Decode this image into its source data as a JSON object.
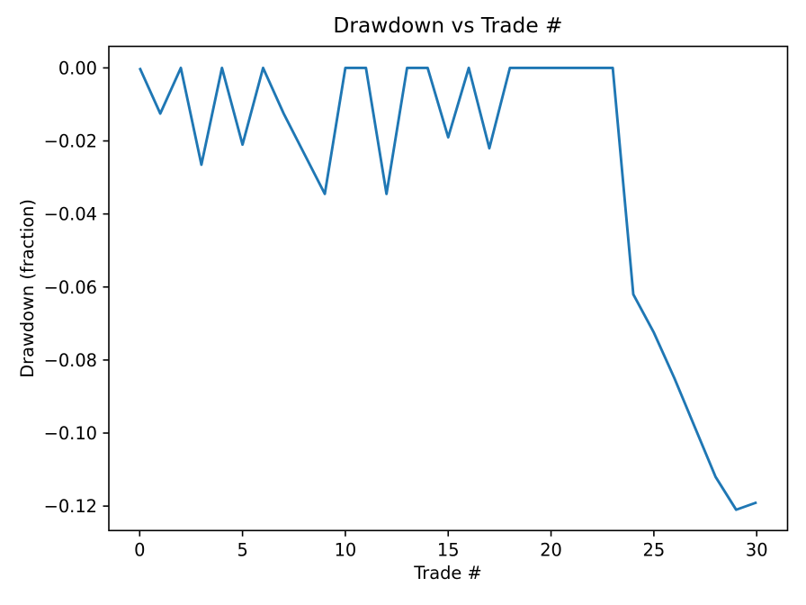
{
  "chart_data": {
    "type": "line",
    "title": "Drawdown vs Trade #",
    "xlabel": "Trade #",
    "ylabel": "Drawdown (fraction)",
    "x": [
      0,
      1,
      2,
      3,
      4,
      5,
      6,
      7,
      8,
      9,
      10,
      11,
      12,
      13,
      14,
      15,
      16,
      17,
      18,
      19,
      20,
      21,
      22,
      23,
      24,
      25,
      26,
      27,
      28,
      29,
      30
    ],
    "series": [
      {
        "name": "drawdown",
        "color": "#1f77b4",
        "values": [
          0,
          -0.0125,
          0,
          -0.0265,
          0,
          -0.021,
          0,
          -0.0125,
          -0.0235,
          -0.0345,
          0,
          0,
          -0.0345,
          0,
          0,
          -0.019,
          0,
          -0.022,
          0,
          0,
          0,
          0,
          0,
          0,
          -0.062,
          -0.0725,
          -0.085,
          -0.0985,
          -0.112,
          -0.121,
          -0.119
        ]
      }
    ],
    "xlim": [
      -1.5,
      31.5
    ],
    "ylim": [
      -0.1267,
      0.0059
    ],
    "xticks": [
      0,
      5,
      10,
      15,
      20,
      25,
      30
    ],
    "xtick_labels": [
      "0",
      "5",
      "10",
      "15",
      "20",
      "25",
      "30"
    ],
    "yticks": [
      0.0,
      -0.02,
      -0.04,
      -0.06,
      -0.08,
      -0.1,
      -0.12
    ],
    "ytick_labels": [
      "0.00",
      "−0.02",
      "−0.04",
      "−0.06",
      "−0.08",
      "−0.10",
      "−0.12"
    ],
    "grid": false,
    "legend": "none",
    "background_color": "#ffffff",
    "spine_color": "#000000",
    "text_color": "#000000"
  }
}
